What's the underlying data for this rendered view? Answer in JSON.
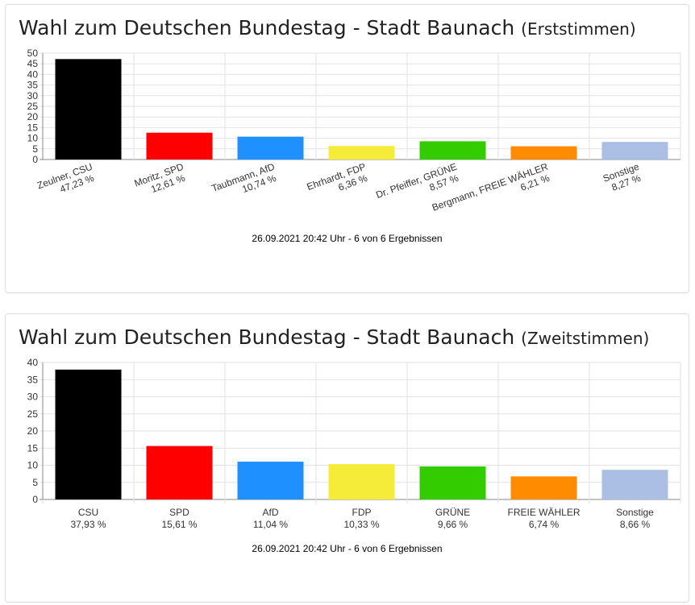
{
  "charts": [
    {
      "title": "Wahl zum Deutschen Bundestag - Stadt Baunach",
      "subtitle": "(Erststimmen)",
      "footer": "26.09.2021 20:42 Uhr - 6 von 6 Ergebnissen"
    },
    {
      "title": "Wahl zum Deutschen Bundestag - Stadt Baunach",
      "subtitle": "(Zweitstimmen)",
      "footer": "26.09.2021 20:42 Uhr - 6 von 6 Ergebnissen"
    }
  ],
  "chart_data": [
    {
      "type": "bar",
      "title": "Wahl zum Deutschen Bundestag - Stadt Baunach (Erststimmen)",
      "categories": [
        "Zeulner, CSU",
        "Moritz, SPD",
        "Taubmann, AfD",
        "Ehrhardt, FDP",
        "Dr. Pfeiffer, GRÜNE",
        "Bergmann, FREIE WÄHLER",
        "Sonstige"
      ],
      "value_labels": [
        "47,23 %",
        "12,61 %",
        "10,74 %",
        "6,36 %",
        "8,57 %",
        "6,21 %",
        "8,27 %"
      ],
      "values": [
        47.23,
        12.61,
        10.74,
        6.36,
        8.57,
        6.21,
        8.27
      ],
      "colors": [
        "#000000",
        "#ff0000",
        "#1e90ff",
        "#f5ec3a",
        "#33cc00",
        "#ff8c00",
        "#aabfe3"
      ],
      "yticks": [
        0,
        5,
        10,
        15,
        20,
        25,
        30,
        35,
        40,
        45,
        50
      ],
      "ylim": [
        0,
        50
      ],
      "grid": true,
      "label_rotation": true
    },
    {
      "type": "bar",
      "title": "Wahl zum Deutschen Bundestag - Stadt Baunach (Zweitstimmen)",
      "categories": [
        "CSU",
        "SPD",
        "AfD",
        "FDP",
        "GRÜNE",
        "FREIE WÄHLER",
        "Sonstige"
      ],
      "value_labels": [
        "37,93 %",
        "15,61 %",
        "11,04 %",
        "10,33 %",
        "9,66 %",
        "6,74 %",
        "8,66 %"
      ],
      "values": [
        37.93,
        15.61,
        11.04,
        10.33,
        9.66,
        6.74,
        8.66
      ],
      "colors": [
        "#000000",
        "#ff0000",
        "#1e90ff",
        "#f5ec3a",
        "#33cc00",
        "#ff8c00",
        "#aabfe3"
      ],
      "yticks": [
        0,
        5,
        10,
        15,
        20,
        25,
        30,
        35,
        40
      ],
      "ylim": [
        0,
        40
      ],
      "grid": true,
      "label_rotation": false
    }
  ]
}
